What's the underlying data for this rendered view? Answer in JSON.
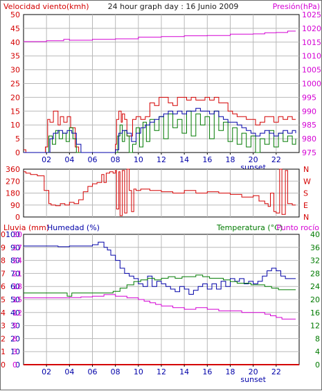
{
  "colors": {
    "red": "#d40000",
    "magenta": "#d400d4",
    "green": "#007a00",
    "blue": "#0000a8",
    "dark": "#202020",
    "grid": "#b8b8b8",
    "plot_bg": "#ffffff",
    "axis": "#000000"
  },
  "chart_data": [
    {
      "type": "line",
      "title": "24 hour graph day : 16 Junio 2009",
      "ylabel_left": "Velocidad viento(kmh)",
      "ylabel_right": "Presión(hPa)",
      "xticks": [
        "02",
        "04",
        "06",
        "08",
        "10",
        "12",
        "14",
        "16",
        "18",
        "20",
        "22"
      ],
      "xticks_values": [
        2,
        4,
        6,
        8,
        10,
        12,
        14,
        16,
        18,
        20,
        22
      ],
      "xmarker": "sunset",
      "xmarker_at": 20,
      "xlim": [
        0,
        24
      ],
      "ylim_left": [
        0,
        50
      ],
      "yticks_left": [
        "0",
        "5",
        "10",
        "15",
        "20",
        "25",
        "30",
        "35",
        "40",
        "45",
        "50"
      ],
      "ylim_right": [
        975,
        1025
      ],
      "yticks_right": [
        "975",
        "980",
        "985",
        "990",
        "995",
        "1000",
        "1005",
        "1010",
        "1015",
        "1020",
        "1025"
      ],
      "grid": true,
      "series": [
        {
          "axis": "left",
          "style": "wind-gust",
          "color": "red",
          "x": [
            0,
            0.2,
            1,
            1.9,
            2.1,
            2.3,
            2.6,
            2.8,
            3.0,
            3.2,
            3.5,
            3.8,
            4.1,
            4.5,
            4.8,
            5.2,
            5.6,
            6.0,
            6.4,
            6.8,
            7.1,
            7.4,
            7.7,
            8.0,
            8.1,
            8.3,
            8.5,
            8.6,
            8.8,
            9.0,
            9.2,
            9.5,
            9.8,
            10.2,
            10.6,
            11.0,
            11.4,
            11.8,
            12.2,
            12.6,
            13.0,
            13.4,
            13.8,
            14.2,
            14.6,
            15.0,
            15.4,
            15.8,
            16.2,
            16.6,
            17.0,
            17.4,
            17.8,
            18.2,
            18.6,
            19.0,
            19.4,
            19.8,
            20.2,
            20.6,
            21.0,
            21.4,
            21.8,
            22.2,
            22.6,
            23.0,
            23.4,
            23.7
          ],
          "y": [
            1,
            0,
            0,
            2,
            12,
            11,
            15,
            15,
            10,
            13,
            11,
            13,
            9,
            2,
            0,
            0,
            0,
            0,
            0,
            0,
            0,
            0,
            0,
            3,
            12,
            15,
            11,
            14,
            12,
            6,
            6,
            12,
            13,
            12,
            13,
            18,
            17,
            20,
            20,
            18,
            17,
            20,
            20,
            19,
            20,
            19,
            19,
            20,
            19,
            20,
            18,
            18,
            15,
            14,
            13,
            13,
            12,
            12,
            10,
            11,
            13,
            13,
            11,
            13,
            12,
            13,
            12,
            12
          ]
        },
        {
          "axis": "left",
          "style": "wind-gust-thin",
          "color": "green",
          "x": [
            0,
            1,
            2.0,
            2.2,
            2.5,
            2.8,
            3.1,
            3.4,
            3.7,
            4.0,
            4.3,
            4.6,
            5,
            6,
            7,
            8.0,
            8.2,
            8.4,
            8.6,
            8.8,
            9.0,
            9.2,
            9.5,
            9.8,
            10.1,
            10.4,
            10.7,
            11.0,
            11.4,
            11.8,
            12.2,
            12.6,
            13.0,
            13.4,
            13.8,
            14.2,
            14.6,
            15.0,
            15.4,
            15.8,
            16.2,
            16.6,
            17.0,
            17.4,
            17.8,
            18.2,
            18.6,
            19.0,
            19.4,
            19.8,
            20.2,
            20.6,
            21.0,
            21.4,
            21.8,
            22.2,
            22.6,
            23.0,
            23.4,
            23.7
          ],
          "y": [
            0,
            0,
            0,
            6,
            3,
            8,
            5,
            7,
            4,
            9,
            5,
            0,
            0,
            0,
            0,
            0,
            6,
            10,
            4,
            8,
            6,
            0,
            3,
            9,
            2,
            11,
            4,
            12,
            8,
            13,
            5,
            14,
            9,
            12,
            7,
            15,
            6,
            14,
            10,
            13,
            5,
            15,
            8,
            11,
            4,
            9,
            3,
            7,
            2,
            6,
            0,
            5,
            3,
            8,
            2,
            7,
            4,
            6,
            3,
            5
          ]
        },
        {
          "axis": "left",
          "style": "wind-avg",
          "color": "blue",
          "x": [
            0,
            1,
            2.0,
            2.3,
            2.6,
            3.0,
            3.4,
            3.8,
            4.2,
            4.6,
            5.0,
            6,
            7,
            8.0,
            8.3,
            8.6,
            9.0,
            9.4,
            9.8,
            10.2,
            10.6,
            11.0,
            11.4,
            11.8,
            12.2,
            12.6,
            13.0,
            13.4,
            13.8,
            14.2,
            14.6,
            15.0,
            15.4,
            15.8,
            16.2,
            16.6,
            17.0,
            17.4,
            17.8,
            18.2,
            18.6,
            19.0,
            19.4,
            19.8,
            20.2,
            20.6,
            21.0,
            21.4,
            21.8,
            22.2,
            22.6,
            23.0,
            23.4,
            23.7
          ],
          "y": [
            0,
            0,
            0,
            5,
            7,
            8,
            7,
            8,
            7,
            3,
            0,
            0,
            0,
            1,
            7,
            8,
            7,
            4,
            7,
            9,
            10,
            11,
            12,
            13,
            14,
            15,
            14,
            15,
            14,
            15,
            15,
            16,
            15,
            15,
            14,
            15,
            13,
            12,
            11,
            11,
            10,
            9,
            8,
            7,
            6,
            7,
            8,
            7,
            6,
            7,
            8,
            7,
            8,
            7
          ]
        },
        {
          "axis": "right",
          "style": "pressure",
          "color": "magenta",
          "x": [
            0,
            2,
            3.5,
            4,
            6,
            8,
            10,
            12,
            14,
            16,
            18,
            20,
            21,
            22,
            23,
            23.7
          ],
          "y": [
            1015.2,
            1015.5,
            1016,
            1015.7,
            1016,
            1016.2,
            1016.8,
            1017,
            1017.3,
            1017.4,
            1017.9,
            1018,
            1018.4,
            1018.5,
            1019,
            1019
          ]
        }
      ]
    },
    {
      "type": "line",
      "ylabel_right": "N W S E N",
      "ylabel_right_letters": [
        "N",
        "W",
        "S",
        "E",
        "N"
      ],
      "xlim": [
        0,
        24
      ],
      "ylim": [
        0,
        360
      ],
      "yticks": [
        "0",
        "90",
        "180",
        "270",
        "360"
      ],
      "grid": true,
      "series": [
        {
          "style": "wind-direction",
          "color": "red",
          "x": [
            0,
            0.2,
            0.6,
            1.2,
            1.8,
            2.2,
            2.4,
            2.8,
            3.2,
            3.6,
            4.0,
            4.4,
            4.8,
            5.2,
            5.6,
            6.0,
            6.4,
            6.8,
            7.0,
            7.2,
            7.5,
            7.8,
            8.0,
            8.1,
            8.3,
            8.4,
            8.6,
            8.8,
            9.0,
            9.2,
            9.4,
            9.6,
            9.8,
            10.2,
            11.0,
            12.0,
            13.0,
            14.0,
            15.0,
            16.0,
            17.0,
            18.0,
            19.0,
            20.0,
            20.5,
            21.0,
            21.3,
            21.5,
            21.8,
            22.0,
            22.3,
            22.5,
            22.8,
            23.0,
            23.4,
            23.7
          ],
          "y": [
            340,
            330,
            320,
            310,
            200,
            100,
            90,
            85,
            100,
            90,
            110,
            100,
            130,
            190,
            230,
            250,
            260,
            320,
            260,
            330,
            340,
            330,
            350,
            60,
            340,
            10,
            350,
            30,
            360,
            200,
            40,
            210,
            200,
            210,
            200,
            190,
            180,
            200,
            180,
            190,
            180,
            170,
            150,
            160,
            120,
            100,
            80,
            180,
            40,
            30,
            360,
            20,
            350,
            100,
            90,
            90
          ]
        }
      ]
    },
    {
      "type": "line",
      "ylabel_left_1": "Lluvia (mm)",
      "ylabel_left_2": "Humedad (%)",
      "ylabel_right_1": "Temperatura (°C)",
      "ylabel_right_2": "Punto rocío",
      "xticks": [
        "02",
        "04",
        "06",
        "08",
        "10",
        "12",
        "14",
        "16",
        "18",
        "20",
        "22"
      ],
      "xticks_values": [
        2,
        4,
        6,
        8,
        10,
        12,
        14,
        16,
        18,
        20,
        22
      ],
      "xmarker": "sunset",
      "xmarker_at": 20,
      "xlim": [
        0,
        24
      ],
      "ylim_rain": [
        0,
        10
      ],
      "yticks_rain": [
        "0",
        "1",
        "2",
        "3",
        "4",
        "5",
        "6",
        "7",
        "8",
        "9",
        "10"
      ],
      "ylim_humidity": [
        0,
        100
      ],
      "yticks_humidity": [
        "0",
        "10",
        "20",
        "30",
        "40",
        "50",
        "60",
        "70",
        "80",
        "90",
        "100"
      ],
      "ylim_left_mid": [
        0,
        30
      ],
      "yticks_left_mid": [
        "0",
        "3",
        "6",
        "9",
        "12",
        "15",
        "18",
        "21",
        "24",
        "27",
        "30"
      ],
      "ylim_temp": [
        0,
        40
      ],
      "yticks_temp": [
        "0",
        "4",
        "8",
        "12",
        "16",
        "20",
        "24",
        "28",
        "32",
        "36",
        "40"
      ],
      "grid": true,
      "series": [
        {
          "axis": "humidity",
          "style": "humidity",
          "color": "blue",
          "x": [
            0,
            1,
            2,
            3,
            4,
            5,
            6,
            6.5,
            7.0,
            7.3,
            7.6,
            8.0,
            8.4,
            8.8,
            9.2,
            9.6,
            10.0,
            10.4,
            10.8,
            11.2,
            11.6,
            12.0,
            12.4,
            12.8,
            13.2,
            13.6,
            14.0,
            14.4,
            14.8,
            15.2,
            15.6,
            16.0,
            16.4,
            16.8,
            17.2,
            17.6,
            18.0,
            18.4,
            18.8,
            19.2,
            19.6,
            20.0,
            20.4,
            20.8,
            21.2,
            21.6,
            22.0,
            22.4,
            22.8,
            23.2,
            23.7
          ],
          "y": [
            91,
            91,
            91,
            90.5,
            91,
            91,
            92,
            94,
            90,
            88,
            84,
            80,
            74,
            70,
            68,
            66,
            62,
            60,
            68,
            60,
            64,
            62,
            60,
            58,
            56,
            60,
            58,
            54,
            57,
            60,
            62,
            58,
            62,
            58,
            64,
            60,
            66,
            64,
            66,
            62,
            64,
            62,
            64,
            68,
            72,
            74,
            72,
            68,
            66,
            66,
            66
          ]
        },
        {
          "axis": "temp",
          "style": "temperature",
          "color": "green",
          "x": [
            0,
            1,
            2,
            3,
            3.8,
            4.2,
            5,
            6,
            7,
            7.8,
            8.4,
            9.0,
            9.6,
            10.2,
            10.8,
            11.4,
            12.0,
            12.6,
            13.2,
            13.8,
            14.4,
            15.0,
            15.6,
            16.2,
            16.8,
            17.4,
            18.0,
            18.6,
            19.2,
            19.8,
            20.4,
            21.0,
            21.6,
            22.2,
            22.8,
            23.4,
            23.7
          ],
          "y": [
            22,
            22,
            22,
            22,
            21,
            22,
            22,
            22,
            22,
            22.5,
            23.5,
            24.5,
            25.5,
            26,
            26.5,
            26,
            26.5,
            27,
            26.5,
            27,
            27,
            27.5,
            27,
            26.5,
            26.5,
            26,
            25.5,
            25,
            25,
            24.5,
            24.5,
            24,
            23.5,
            23,
            23,
            23,
            23
          ]
        },
        {
          "axis": "temp",
          "style": "dewpoint",
          "color": "magenta",
          "x": [
            0,
            1,
            2,
            3,
            4,
            5,
            6,
            7,
            8,
            9,
            10,
            10.5,
            11,
            11.5,
            12,
            12.5,
            13,
            13.5,
            14,
            14.5,
            15,
            16,
            17,
            18,
            19,
            20,
            20.5,
            21,
            21.5,
            22,
            22.5,
            23,
            23.7
          ],
          "y": [
            20.5,
            20.5,
            20.5,
            20.5,
            20.6,
            20.8,
            21,
            21.5,
            21,
            20.5,
            20,
            19.5,
            19,
            18.5,
            18,
            18,
            17.5,
            17.5,
            17,
            17,
            17.5,
            17,
            16.5,
            16.5,
            16,
            16,
            16,
            15.5,
            15,
            14.5,
            14,
            14,
            14
          ]
        },
        {
          "axis": "rain",
          "style": "rain",
          "color": "red",
          "x": [
            0,
            24
          ],
          "y": [
            0,
            0
          ]
        }
      ]
    }
  ]
}
